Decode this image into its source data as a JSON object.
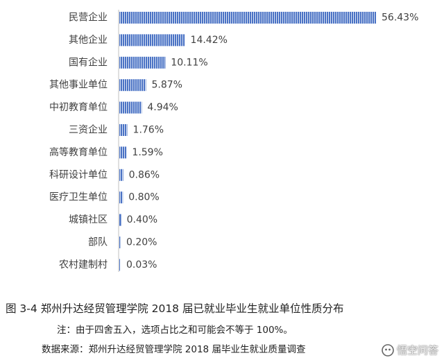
{
  "chart_data": {
    "type": "bar",
    "orientation": "horizontal",
    "categories": [
      "民营企业",
      "其他企业",
      "国有企业",
      "其他事业单位",
      "中初教育单位",
      "三资企业",
      "高等教育单位",
      "科研设计单位",
      "医疗卫生单位",
      "城镇社区",
      "部队",
      "农村建制村"
    ],
    "values": [
      56.43,
      14.42,
      10.11,
      5.87,
      4.94,
      1.76,
      1.59,
      0.86,
      0.8,
      0.4,
      0.2,
      0.03
    ],
    "value_labels": [
      "56.43%",
      "14.42%",
      "10.11%",
      "5.87%",
      "4.94%",
      "1.76%",
      "1.59%",
      "0.86%",
      "0.80%",
      "0.40%",
      "0.20%",
      "0.03%"
    ],
    "unit": "%",
    "xlim": [
      0,
      60
    ],
    "grid": false,
    "bar_color": "#4a72c4",
    "bar_fill": "vertical-stripes"
  },
  "caption": "图 3-4 郑州升达经贸管理学院 2018 届已就业毕业生就业单位性质分布",
  "note": "注：由于四舍五入，选项占比之和可能会不等于 100%。",
  "source": "数据来源：郑州升达经贸管理学院 2018 届毕业生就业质量调查",
  "watermark": {
    "text": "悟空问答",
    "icon": "wukong-logo-icon"
  }
}
